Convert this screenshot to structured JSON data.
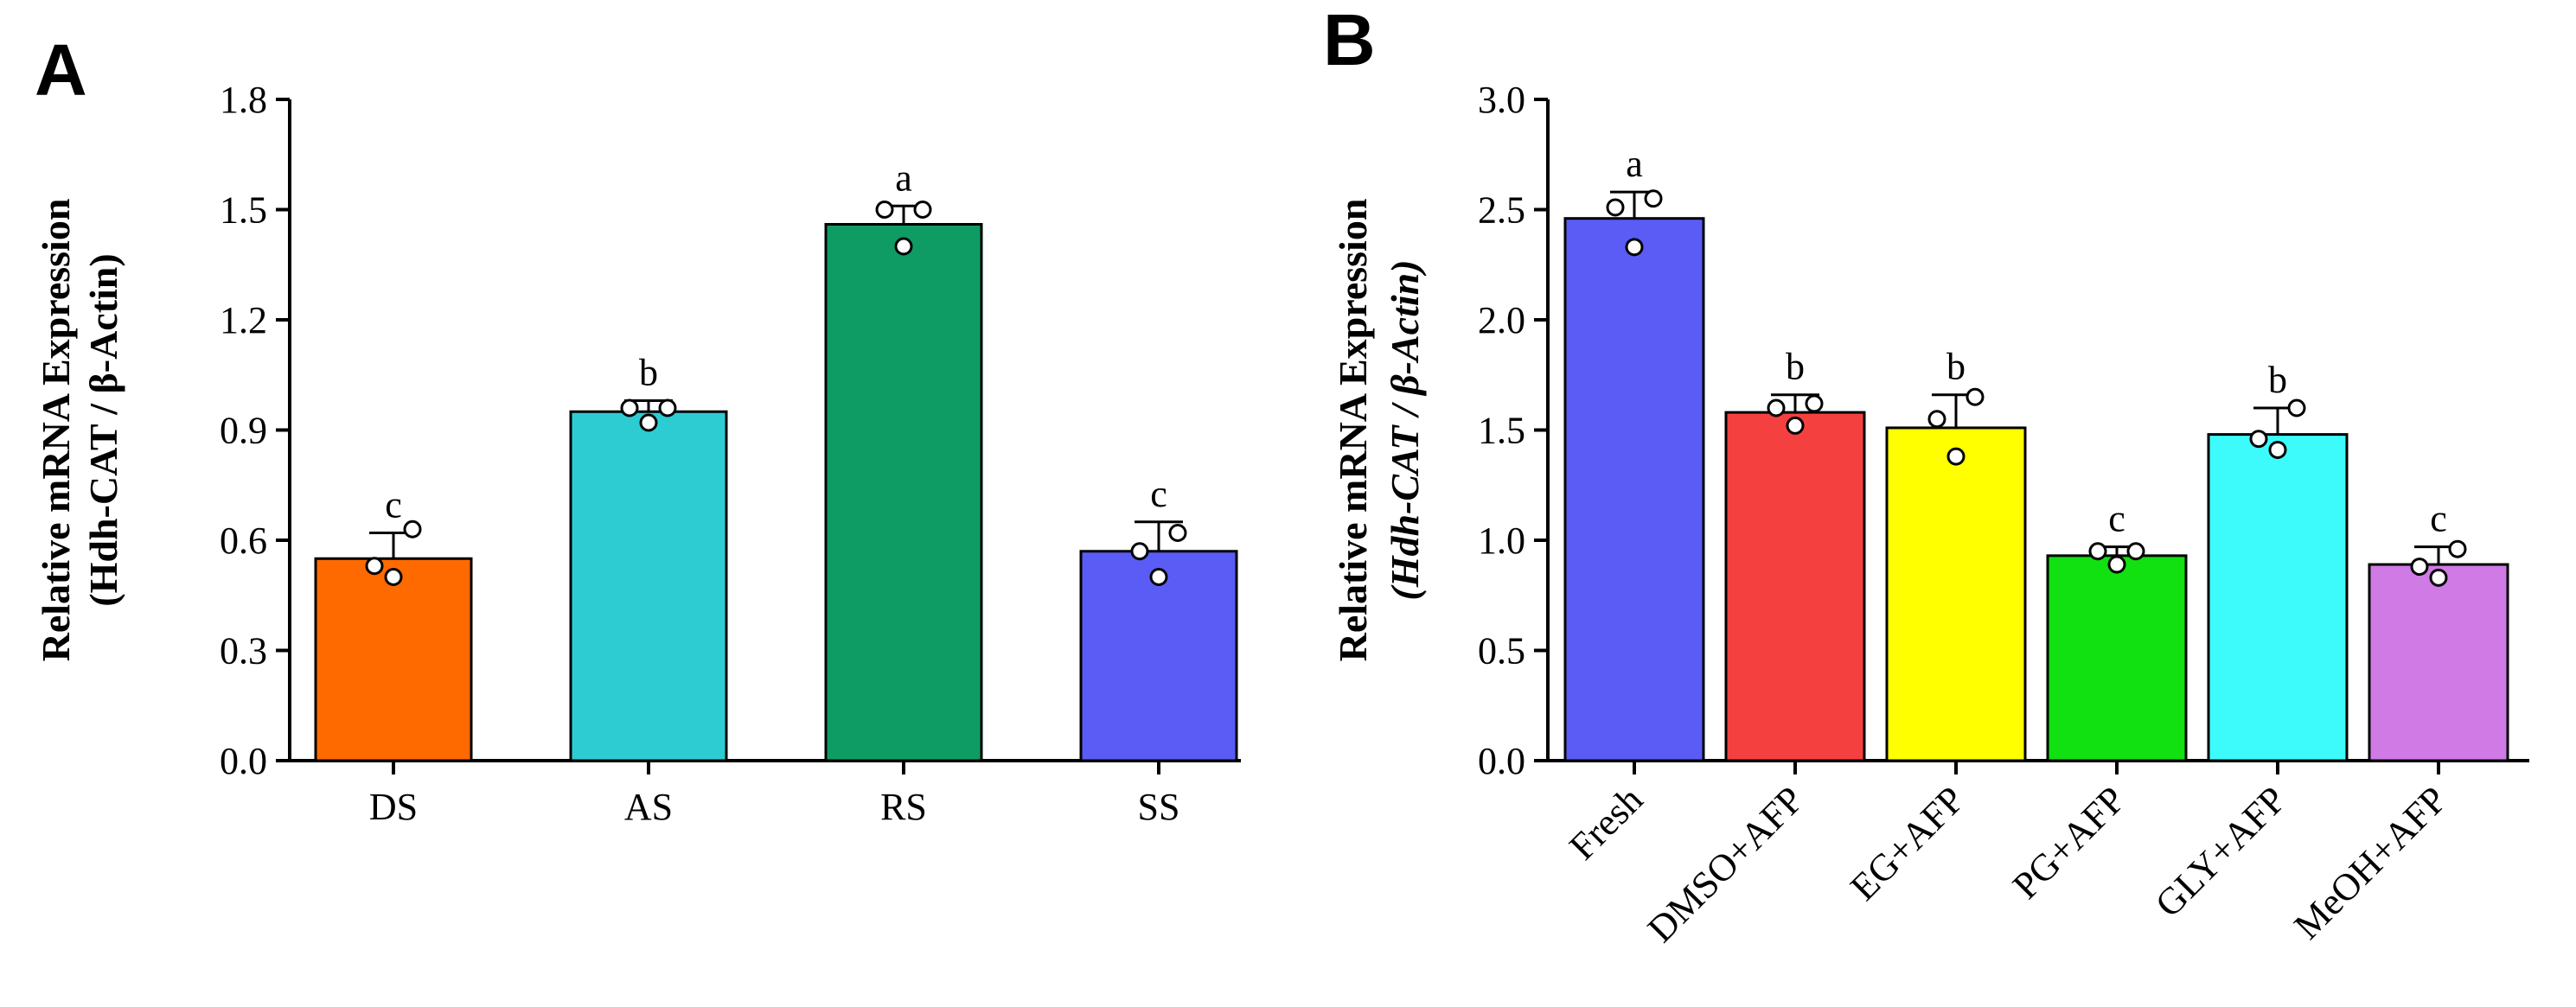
{
  "chart_data": [
    {
      "panel": "A",
      "type": "bar",
      "title": "",
      "xlabel": "",
      "ylabel_line1": "Relative mRNA Expression",
      "ylabel_line2": "(Hdh-CAT / β-Actin)",
      "ylim": [
        0,
        1.8
      ],
      "yticks": [
        "0.0",
        "0.3",
        "0.6",
        "0.9",
        "1.2",
        "1.5",
        "1.8"
      ],
      "categories": [
        "DS",
        "AS",
        "RS",
        "SS"
      ],
      "values": [
        0.55,
        0.95,
        1.46,
        0.57
      ],
      "errors": [
        0.07,
        0.03,
        0.05,
        0.08
      ],
      "points": [
        [
          0.5,
          0.53,
          0.63
        ],
        [
          0.92,
          0.96,
          0.96
        ],
        [
          1.4,
          1.5,
          1.5
        ],
        [
          0.5,
          0.57,
          0.62
        ]
      ],
      "letters": [
        "c",
        "b",
        "a",
        "c"
      ],
      "colors": [
        "#ff6a00",
        "#2dccd3",
        "#0f9b64",
        "#5a5cf5"
      ]
    },
    {
      "panel": "B",
      "type": "bar",
      "title": "",
      "xlabel": "",
      "ylabel_line1": "Relative mRNA Expression",
      "ylabel_line2": "(Hdh-CAT / β-Actin)",
      "ylim": [
        0,
        3.0
      ],
      "yticks": [
        "0.0",
        "0.5",
        "1.0",
        "1.5",
        "2.0",
        "2.5",
        "3.0"
      ],
      "categories": [
        "Fresh",
        "DMSO+AFP",
        "EG+AFP",
        "PG+AFP",
        "GLY+AFP",
        "MeOH+AFP"
      ],
      "values": [
        2.46,
        1.58,
        1.51,
        0.93,
        1.48,
        0.89
      ],
      "errors": [
        0.12,
        0.08,
        0.15,
        0.04,
        0.12,
        0.08
      ],
      "points": [
        [
          2.33,
          2.51,
          2.55
        ],
        [
          1.52,
          1.6,
          1.62
        ],
        [
          1.38,
          1.55,
          1.65
        ],
        [
          0.89,
          0.95,
          0.95
        ],
        [
          1.41,
          1.46,
          1.6
        ],
        [
          0.83,
          0.88,
          0.96
        ]
      ],
      "letters": [
        "a",
        "b",
        "b",
        "c",
        "b",
        "c"
      ],
      "colors": [
        "#5a5cf5",
        "#f54040",
        "#ffff00",
        "#11e011",
        "#3dfbfb",
        "#d07ae6"
      ]
    }
  ]
}
